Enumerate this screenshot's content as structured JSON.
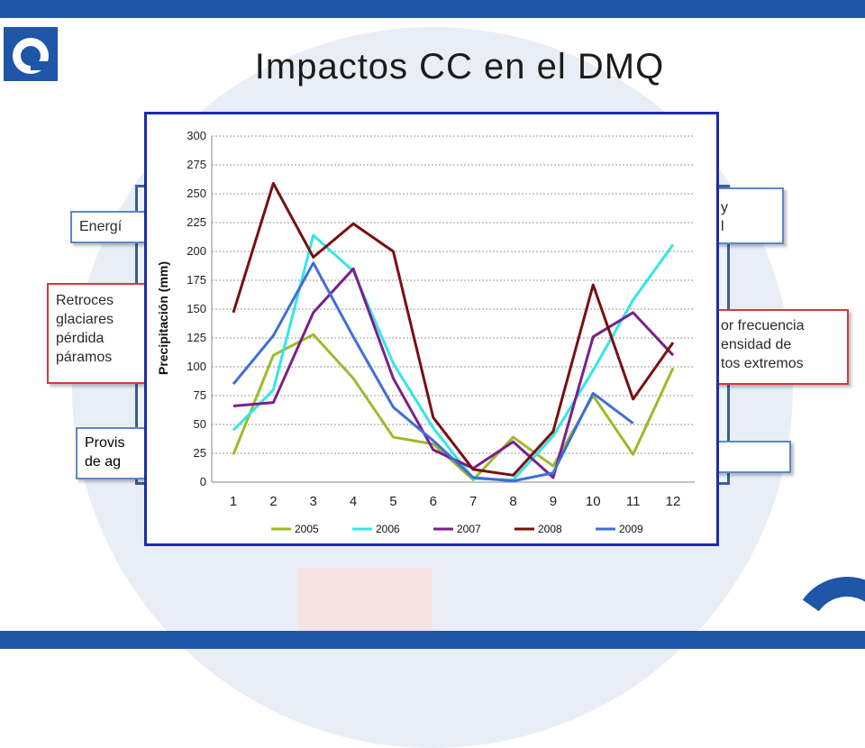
{
  "slide": {
    "title": "Impactos CC en el DMQ",
    "colors": {
      "bar": "#1f56a8",
      "frame": "#3a5f99",
      "chart_border": "#1c2da8",
      "red_box": "#d23a3a",
      "blue_box": "#5a88c8"
    }
  },
  "labels": [
    {
      "id": "energia",
      "lines": [
        "Energí"
      ],
      "style": "blue"
    },
    {
      "id": "retroceso",
      "lines": [
        "Retroces",
        "glaciares",
        "pérdida",
        "páramos"
      ],
      "style": "red"
    },
    {
      "id": "provision",
      "lines": [
        "Provis",
        "de ag"
      ],
      "style": "blue"
    },
    {
      "id": "right-top",
      "lines": [
        "y",
        "l"
      ],
      "style": "blue"
    },
    {
      "id": "right-mid",
      "lines": [
        "or frecuencia",
        "ensidad de",
        "tos extremos"
      ],
      "style": "red"
    },
    {
      "id": "right-bottom",
      "lines": [
        ""
      ],
      "style": "blue"
    }
  ],
  "chart_data": {
    "type": "line",
    "title": "",
    "xlabel": "",
    "ylabel": "Precipitación (mm)",
    "x": [
      1,
      2,
      3,
      4,
      5,
      6,
      7,
      8,
      9,
      10,
      11,
      12
    ],
    "xlim": [
      1,
      12
    ],
    "ylim": [
      0,
      300
    ],
    "yticks": [
      0,
      25,
      50,
      75,
      100,
      125,
      150,
      175,
      200,
      225,
      250,
      275,
      300
    ],
    "grid": "horizontal-dotted",
    "legend": "bottom",
    "series": [
      {
        "name": "2005",
        "color": "#9bbb2a",
        "values": [
          24,
          110,
          128,
          90,
          39,
          33,
          2,
          39,
          14,
          75,
          24,
          99
        ]
      },
      {
        "name": "2006",
        "color": "#33e6e6",
        "values": [
          45,
          80,
          214,
          183,
          103,
          47,
          3,
          2,
          40,
          97,
          158,
          206
        ]
      },
      {
        "name": "2007",
        "color": "#7b1f8a",
        "values": [
          66,
          69,
          147,
          185,
          90,
          28,
          12,
          35,
          4,
          126,
          147,
          110
        ]
      },
      {
        "name": "2008",
        "color": "#7a0f10",
        "values": [
          147,
          259,
          195,
          224,
          200,
          56,
          11,
          6,
          44,
          171,
          72,
          121
        ]
      },
      {
        "name": "2009",
        "color": "#3e6fd9",
        "values": [
          85,
          127,
          190,
          126,
          65,
          36,
          4,
          1,
          8,
          77,
          51,
          null
        ]
      }
    ]
  }
}
